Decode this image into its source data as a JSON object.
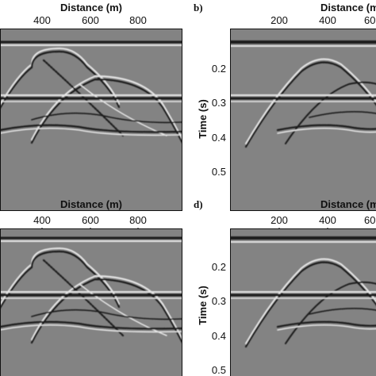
{
  "figure": {
    "panels": [
      {
        "id": "a",
        "label": "",
        "x_title": "Distance (m)",
        "x_ticks": [
          "400",
          "600",
          "800"
        ],
        "y_title": "",
        "y_ticks": []
      },
      {
        "id": "b",
        "label": "b)",
        "x_title": "Distance (m)",
        "x_ticks": [
          "200",
          "400",
          "60"
        ],
        "y_title": "Time (s)",
        "y_ticks": [
          "0.2",
          "0.3",
          "0.4",
          "0.5"
        ]
      },
      {
        "id": "c",
        "label": "",
        "x_title": "Distance (m)",
        "x_ticks": [
          "400",
          "600",
          "800"
        ],
        "y_title": "",
        "y_ticks": []
      },
      {
        "id": "d",
        "label": "d)",
        "x_title": "Distance (m)",
        "x_ticks": [
          "200",
          "400",
          "60"
        ],
        "y_title": "Time (s)",
        "y_ticks": [
          "0.2",
          "0.3",
          "0.4",
          "0.5"
        ]
      }
    ],
    "colors": {
      "background_gray": "#808080",
      "event_dark": "#1a1a1a",
      "event_light": "#e6e6e6"
    }
  }
}
